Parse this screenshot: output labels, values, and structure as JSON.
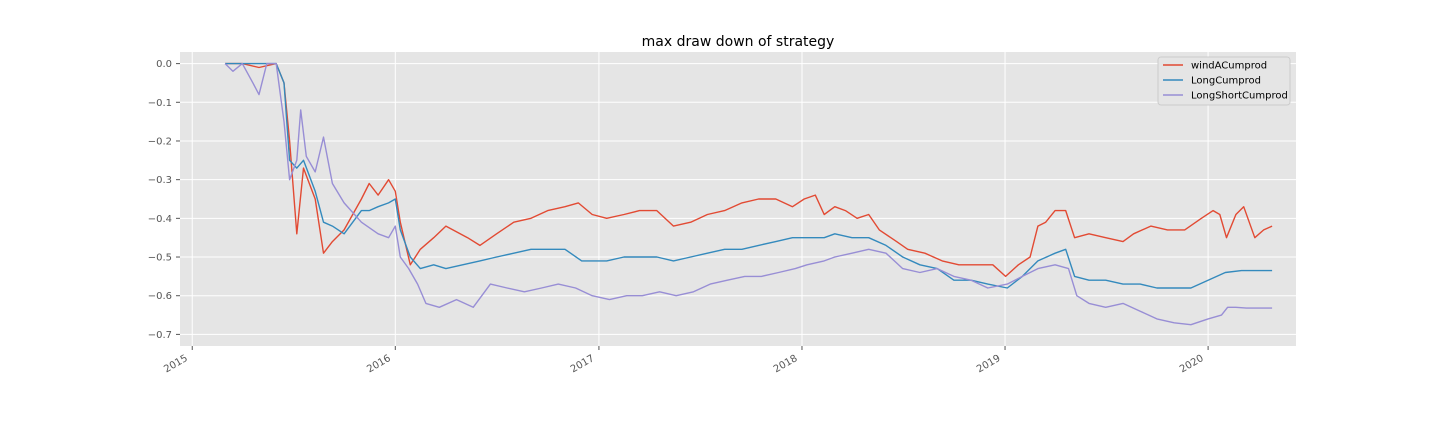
{
  "chart_data": {
    "type": "line",
    "title": "max draw down of strategy",
    "xlabel": "",
    "ylabel": "",
    "xlim": [
      "2014-12-10",
      "2020-06-07"
    ],
    "ylim": [
      -0.73,
      0.03
    ],
    "x_ticks": [
      "2015-01-01",
      "2016-01-01",
      "2017-01-01",
      "2018-01-01",
      "2019-01-01",
      "2020-01-01"
    ],
    "x_tick_labels": [
      "2015",
      "2016",
      "2017",
      "2018",
      "2019",
      "2020"
    ],
    "y_ticks": [
      0.0,
      -0.1,
      -0.2,
      -0.3,
      -0.4,
      -0.5,
      -0.6,
      -0.7
    ],
    "y_tick_labels": [
      "0.0",
      "−0.1",
      "−0.2",
      "−0.3",
      "−0.4",
      "−0.5",
      "−0.6",
      "−0.7"
    ],
    "grid": true,
    "legend_position": "top-right",
    "background_color": "#e5e5e5",
    "series": [
      {
        "name": "windACumprod",
        "color": "#e24a33",
        "points": [
          [
            "2015-03-01",
            0.0
          ],
          [
            "2015-04-01",
            0.0
          ],
          [
            "2015-05-01",
            -0.01
          ],
          [
            "2015-06-01",
            0.0
          ],
          [
            "2015-06-15",
            -0.05
          ],
          [
            "2015-06-25",
            -0.2
          ],
          [
            "2015-07-08",
            -0.44
          ],
          [
            "2015-07-20",
            -0.27
          ],
          [
            "2015-08-10",
            -0.35
          ],
          [
            "2015-08-25",
            -0.49
          ],
          [
            "2015-09-10",
            -0.46
          ],
          [
            "2015-10-01",
            -0.43
          ],
          [
            "2015-11-01",
            -0.35
          ],
          [
            "2015-11-15",
            -0.31
          ],
          [
            "2015-12-01",
            -0.34
          ],
          [
            "2015-12-20",
            -0.3
          ],
          [
            "2016-01-01",
            -0.33
          ],
          [
            "2016-01-10",
            -0.41
          ],
          [
            "2016-01-28",
            -0.52
          ],
          [
            "2016-02-15",
            -0.48
          ],
          [
            "2016-03-10",
            -0.45
          ],
          [
            "2016-04-01",
            -0.42
          ],
          [
            "2016-05-10",
            -0.45
          ],
          [
            "2016-06-01",
            -0.47
          ],
          [
            "2016-07-01",
            -0.44
          ],
          [
            "2016-08-01",
            -0.41
          ],
          [
            "2016-09-01",
            -0.4
          ],
          [
            "2016-10-01",
            -0.38
          ],
          [
            "2016-11-01",
            -0.37
          ],
          [
            "2016-11-25",
            -0.36
          ],
          [
            "2016-12-20",
            -0.39
          ],
          [
            "2017-01-15",
            -0.4
          ],
          [
            "2017-02-15",
            -0.39
          ],
          [
            "2017-03-15",
            -0.38
          ],
          [
            "2017-04-15",
            -0.38
          ],
          [
            "2017-05-15",
            -0.42
          ],
          [
            "2017-06-15",
            -0.41
          ],
          [
            "2017-07-15",
            -0.39
          ],
          [
            "2017-08-15",
            -0.38
          ],
          [
            "2017-09-15",
            -0.36
          ],
          [
            "2017-10-15",
            -0.35
          ],
          [
            "2017-11-15",
            -0.35
          ],
          [
            "2017-12-15",
            -0.37
          ],
          [
            "2018-01-05",
            -0.35
          ],
          [
            "2018-01-25",
            -0.34
          ],
          [
            "2018-02-10",
            -0.39
          ],
          [
            "2018-03-01",
            -0.37
          ],
          [
            "2018-03-20",
            -0.38
          ],
          [
            "2018-04-10",
            -0.4
          ],
          [
            "2018-05-01",
            -0.39
          ],
          [
            "2018-05-20",
            -0.43
          ],
          [
            "2018-06-20",
            -0.46
          ],
          [
            "2018-07-10",
            -0.48
          ],
          [
            "2018-08-10",
            -0.49
          ],
          [
            "2018-09-10",
            -0.51
          ],
          [
            "2018-10-10",
            -0.52
          ],
          [
            "2018-11-10",
            -0.52
          ],
          [
            "2018-12-10",
            -0.52
          ],
          [
            "2019-01-02",
            -0.55
          ],
          [
            "2019-01-25",
            -0.52
          ],
          [
            "2019-02-15",
            -0.5
          ],
          [
            "2019-03-01",
            -0.42
          ],
          [
            "2019-03-15",
            -0.41
          ],
          [
            "2019-04-01",
            -0.38
          ],
          [
            "2019-04-20",
            -0.38
          ],
          [
            "2019-05-06",
            -0.45
          ],
          [
            "2019-06-01",
            -0.44
          ],
          [
            "2019-07-01",
            -0.45
          ],
          [
            "2019-08-01",
            -0.46
          ],
          [
            "2019-08-20",
            -0.44
          ],
          [
            "2019-09-20",
            -0.42
          ],
          [
            "2019-10-20",
            -0.43
          ],
          [
            "2019-11-20",
            -0.43
          ],
          [
            "2019-12-20",
            -0.4
          ],
          [
            "2020-01-10",
            -0.38
          ],
          [
            "2020-01-22",
            -0.39
          ],
          [
            "2020-02-03",
            -0.45
          ],
          [
            "2020-02-20",
            -0.39
          ],
          [
            "2020-03-05",
            -0.37
          ],
          [
            "2020-03-25",
            -0.45
          ],
          [
            "2020-04-10",
            -0.43
          ],
          [
            "2020-04-25",
            -0.42
          ]
        ]
      },
      {
        "name": "LongCumprod",
        "color": "#348abd",
        "points": [
          [
            "2015-03-01",
            0.0
          ],
          [
            "2015-04-01",
            0.0
          ],
          [
            "2015-05-01",
            0.0
          ],
          [
            "2015-06-01",
            0.0
          ],
          [
            "2015-06-15",
            -0.05
          ],
          [
            "2015-06-25",
            -0.25
          ],
          [
            "2015-07-08",
            -0.27
          ],
          [
            "2015-07-20",
            -0.25
          ],
          [
            "2015-08-10",
            -0.33
          ],
          [
            "2015-08-25",
            -0.41
          ],
          [
            "2015-09-10",
            -0.42
          ],
          [
            "2015-10-01",
            -0.44
          ],
          [
            "2015-11-01",
            -0.38
          ],
          [
            "2015-11-15",
            -0.38
          ],
          [
            "2015-12-01",
            -0.37
          ],
          [
            "2015-12-20",
            -0.36
          ],
          [
            "2016-01-01",
            -0.35
          ],
          [
            "2016-01-10",
            -0.43
          ],
          [
            "2016-01-28",
            -0.5
          ],
          [
            "2016-02-15",
            -0.53
          ],
          [
            "2016-03-10",
            -0.52
          ],
          [
            "2016-04-01",
            -0.53
          ],
          [
            "2016-05-01",
            -0.52
          ],
          [
            "2016-06-01",
            -0.51
          ],
          [
            "2016-07-01",
            -0.5
          ],
          [
            "2016-08-01",
            -0.49
          ],
          [
            "2016-09-01",
            -0.48
          ],
          [
            "2016-10-01",
            -0.48
          ],
          [
            "2016-11-01",
            -0.48
          ],
          [
            "2016-12-01",
            -0.51
          ],
          [
            "2017-01-15",
            -0.51
          ],
          [
            "2017-02-15",
            -0.5
          ],
          [
            "2017-03-15",
            -0.5
          ],
          [
            "2017-04-15",
            -0.5
          ],
          [
            "2017-05-15",
            -0.51
          ],
          [
            "2017-06-15",
            -0.5
          ],
          [
            "2017-07-15",
            -0.49
          ],
          [
            "2017-08-15",
            -0.48
          ],
          [
            "2017-09-15",
            -0.48
          ],
          [
            "2017-10-15",
            -0.47
          ],
          [
            "2017-11-15",
            -0.46
          ],
          [
            "2017-12-15",
            -0.45
          ],
          [
            "2018-01-10",
            -0.45
          ],
          [
            "2018-02-10",
            -0.45
          ],
          [
            "2018-03-01",
            -0.44
          ],
          [
            "2018-04-01",
            -0.45
          ],
          [
            "2018-05-01",
            -0.45
          ],
          [
            "2018-06-01",
            -0.47
          ],
          [
            "2018-07-01",
            -0.5
          ],
          [
            "2018-08-01",
            -0.52
          ],
          [
            "2018-09-01",
            -0.53
          ],
          [
            "2018-10-01",
            -0.56
          ],
          [
            "2018-11-01",
            -0.56
          ],
          [
            "2018-12-01",
            -0.57
          ],
          [
            "2019-01-05",
            -0.58
          ],
          [
            "2019-02-01",
            -0.55
          ],
          [
            "2019-03-01",
            -0.51
          ],
          [
            "2019-04-01",
            -0.49
          ],
          [
            "2019-04-20",
            -0.48
          ],
          [
            "2019-05-06",
            -0.55
          ],
          [
            "2019-06-01",
            -0.56
          ],
          [
            "2019-07-01",
            -0.56
          ],
          [
            "2019-08-01",
            -0.57
          ],
          [
            "2019-09-01",
            -0.57
          ],
          [
            "2019-10-01",
            -0.58
          ],
          [
            "2019-11-01",
            -0.58
          ],
          [
            "2019-12-01",
            -0.58
          ],
          [
            "2020-01-01",
            -0.56
          ],
          [
            "2020-02-01",
            -0.54
          ],
          [
            "2020-03-01",
            -0.535
          ],
          [
            "2020-04-25",
            -0.535
          ]
        ]
      },
      {
        "name": "LongShortCumprod",
        "color": "#988ed5",
        "points": [
          [
            "2015-03-01",
            0.0
          ],
          [
            "2015-03-15",
            -0.02
          ],
          [
            "2015-04-01",
            0.0
          ],
          [
            "2015-04-20",
            -0.05
          ],
          [
            "2015-05-01",
            -0.08
          ],
          [
            "2015-05-15",
            0.0
          ],
          [
            "2015-06-01",
            0.0
          ],
          [
            "2015-06-15",
            -0.15
          ],
          [
            "2015-06-25",
            -0.3
          ],
          [
            "2015-07-08",
            -0.25
          ],
          [
            "2015-07-15",
            -0.12
          ],
          [
            "2015-07-25",
            -0.24
          ],
          [
            "2015-08-10",
            -0.28
          ],
          [
            "2015-08-25",
            -0.19
          ],
          [
            "2015-09-10",
            -0.31
          ],
          [
            "2015-10-01",
            -0.36
          ],
          [
            "2015-11-01",
            -0.41
          ],
          [
            "2015-12-01",
            -0.44
          ],
          [
            "2015-12-20",
            -0.45
          ],
          [
            "2016-01-01",
            -0.42
          ],
          [
            "2016-01-10",
            -0.5
          ],
          [
            "2016-01-25",
            -0.53
          ],
          [
            "2016-02-10",
            -0.57
          ],
          [
            "2016-02-25",
            -0.62
          ],
          [
            "2016-03-20",
            -0.63
          ],
          [
            "2016-04-20",
            -0.61
          ],
          [
            "2016-05-20",
            -0.63
          ],
          [
            "2016-06-20",
            -0.57
          ],
          [
            "2016-07-20",
            -0.58
          ],
          [
            "2016-08-20",
            -0.59
          ],
          [
            "2016-09-20",
            -0.58
          ],
          [
            "2016-10-20",
            -0.57
          ],
          [
            "2016-11-20",
            -0.58
          ],
          [
            "2016-12-20",
            -0.6
          ],
          [
            "2017-01-20",
            -0.61
          ],
          [
            "2017-02-20",
            -0.6
          ],
          [
            "2017-03-20",
            -0.6
          ],
          [
            "2017-04-20",
            -0.59
          ],
          [
            "2017-05-20",
            -0.6
          ],
          [
            "2017-06-20",
            -0.59
          ],
          [
            "2017-07-20",
            -0.57
          ],
          [
            "2017-08-20",
            -0.56
          ],
          [
            "2017-09-20",
            -0.55
          ],
          [
            "2017-10-20",
            -0.55
          ],
          [
            "2017-11-20",
            -0.54
          ],
          [
            "2017-12-20",
            -0.53
          ],
          [
            "2018-01-10",
            -0.52
          ],
          [
            "2018-02-10",
            -0.51
          ],
          [
            "2018-03-01",
            -0.5
          ],
          [
            "2018-04-01",
            -0.49
          ],
          [
            "2018-05-01",
            -0.48
          ],
          [
            "2018-06-01",
            -0.49
          ],
          [
            "2018-07-01",
            -0.53
          ],
          [
            "2018-08-01",
            -0.54
          ],
          [
            "2018-09-01",
            -0.53
          ],
          [
            "2018-10-01",
            -0.55
          ],
          [
            "2018-11-01",
            -0.56
          ],
          [
            "2018-12-01",
            -0.58
          ],
          [
            "2019-01-05",
            -0.57
          ],
          [
            "2019-02-01",
            -0.55
          ],
          [
            "2019-03-01",
            -0.53
          ],
          [
            "2019-04-01",
            -0.52
          ],
          [
            "2019-04-25",
            -0.53
          ],
          [
            "2019-05-10",
            -0.6
          ],
          [
            "2019-06-01",
            -0.62
          ],
          [
            "2019-07-01",
            -0.63
          ],
          [
            "2019-08-01",
            -0.62
          ],
          [
            "2019-09-01",
            -0.64
          ],
          [
            "2019-10-01",
            -0.66
          ],
          [
            "2019-11-01",
            -0.67
          ],
          [
            "2019-12-01",
            -0.675
          ],
          [
            "2020-01-01",
            -0.66
          ],
          [
            "2020-01-25",
            -0.65
          ],
          [
            "2020-02-05",
            -0.63
          ],
          [
            "2020-02-20",
            -0.63
          ],
          [
            "2020-03-10",
            -0.632
          ],
          [
            "2020-04-25",
            -0.632
          ]
        ]
      }
    ]
  }
}
